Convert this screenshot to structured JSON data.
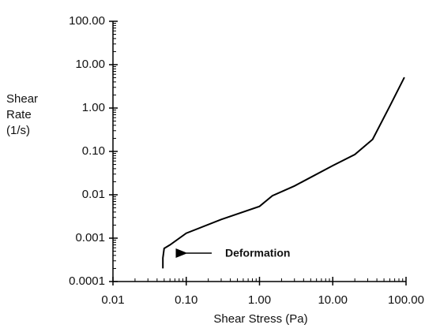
{
  "chart_data": {
    "type": "line",
    "x_label": "Shear Stress (Pa)",
    "y_label": "Shear Rate (1/s)",
    "log_x": true,
    "log_y": true,
    "color": "#000000",
    "x": [
      0.048,
      0.048,
      0.05,
      0.06,
      0.1,
      0.3,
      1,
      1.5,
      3,
      10,
      20,
      35,
      60,
      95
    ],
    "values": [
      0.0002,
      0.00035,
      0.00058,
      0.0007,
      0.0013,
      0.0027,
      0.0054,
      0.0095,
      0.016,
      0.047,
      0.085,
      0.19,
      1.1,
      5.1
    ],
    "xlim": [
      0.01,
      100
    ],
    "ylim": [
      0.0001,
      100
    ],
    "xticks": [
      0.01,
      {
        "value": 0.1,
        "label": "0.10"
      },
      {
        "value": 1,
        "label": "1.00"
      },
      {
        "value": 10,
        "label": "10.00"
      },
      {
        "value": 100,
        "label": "100.00"
      }
    ],
    "yticks": [
      0.0001,
      0.001,
      0.01,
      {
        "value": 0.1,
        "label": "0.10"
      },
      {
        "value": 1,
        "label": "1.00"
      },
      {
        "value": 10,
        "label": "10.00"
      },
      {
        "value": 100,
        "label": "100.00"
      }
    ],
    "annotation": "Deformation"
  }
}
